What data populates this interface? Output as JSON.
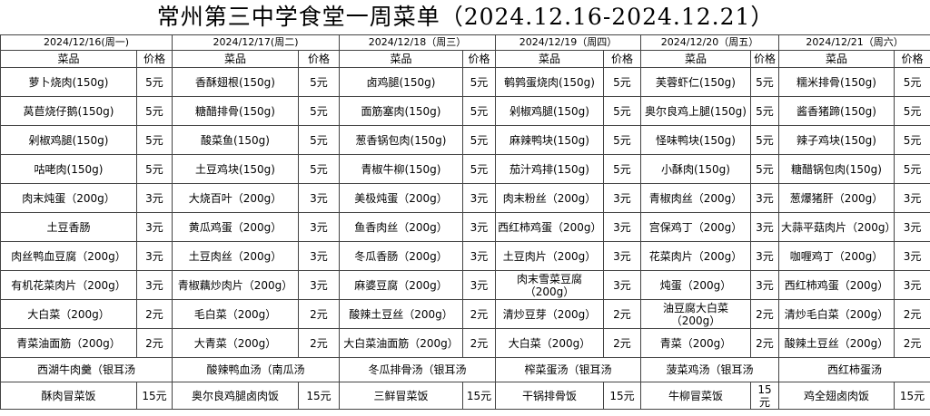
{
  "title": "常州第三中学食堂一周菜单（2024.12.16-2024.12.21）",
  "headers": [
    "菜品",
    "价格"
  ],
  "days": [
    {
      "date": "2024/12/16(周一)",
      "dishes": [
        {
          "name": "萝卜烧肉(150g)",
          "price": "5元"
        },
        {
          "name": "莴苣烧仔鹅(150g)",
          "price": "5元"
        },
        {
          "name": "剁椒鸡腿(150g)",
          "price": "5元"
        },
        {
          "name": "咕咾肉(150g)",
          "price": "5元"
        },
        {
          "name": "肉末炖蛋（200g）",
          "price": "3元"
        },
        {
          "name": "土豆香肠",
          "price": "3元"
        },
        {
          "name": "肉丝鸭血豆腐（200g）",
          "price": "3元"
        },
        {
          "name": "有机花菜肉片（200g）",
          "price": "3元"
        },
        {
          "name": "大白菜（200g）",
          "price": "2元"
        },
        {
          "name": "青菜油面筋（200g）",
          "price": "2元"
        }
      ],
      "soup": "西湖牛肉羹（银耳汤",
      "rice": {
        "name": "酥肉冒菜饭",
        "price": "15元"
      }
    },
    {
      "date": "2024/12/17(周二)",
      "dishes": [
        {
          "name": "香酥翅根(150g)",
          "price": "5元"
        },
        {
          "name": "糖醋排骨(150g)",
          "price": "5元"
        },
        {
          "name": "酸菜鱼(150g)",
          "price": "5元"
        },
        {
          "name": "土豆鸡块(150g)",
          "price": "5元"
        },
        {
          "name": "大烧百叶（200g）",
          "price": "3元"
        },
        {
          "name": "黄瓜鸡蛋（200g）",
          "price": "3元"
        },
        {
          "name": "土豆肉丝（200g）",
          "price": "3元"
        },
        {
          "name": "青椒藕炒肉片（200g）",
          "price": "3元"
        },
        {
          "name": "毛白菜（200g）",
          "price": "2元"
        },
        {
          "name": "大青菜（200g）",
          "price": "2元"
        }
      ],
      "soup": "酸辣鸭血汤（南瓜汤",
      "rice": {
        "name": "奥尔良鸡腿卤肉饭",
        "price": "15元"
      }
    },
    {
      "date": "2024/12/18（周三）",
      "dishes": [
        {
          "name": "卤鸡腿(150g)",
          "price": "5元"
        },
        {
          "name": "面筋塞肉(150g)",
          "price": "5元"
        },
        {
          "name": "葱香锅包肉(150g)",
          "price": "5元"
        },
        {
          "name": "青椒牛柳(150g)",
          "price": "5元"
        },
        {
          "name": "美极炖蛋（200g）",
          "price": "3元"
        },
        {
          "name": "鱼香肉丝（200g）",
          "price": "3元"
        },
        {
          "name": "冬瓜香肠（200g）",
          "price": "3元"
        },
        {
          "name": "麻婆豆腐（200g）",
          "price": "3元"
        },
        {
          "name": "酸辣土豆丝（200g）",
          "price": "2元"
        },
        {
          "name": "大白菜油面筋（200g）",
          "price": "2元"
        }
      ],
      "soup": "冬瓜排骨汤（银耳汤",
      "rice": {
        "name": "三鲜冒菜饭",
        "price": "15元"
      }
    },
    {
      "date": "2024/12/19（周四）",
      "dishes": [
        {
          "name": "鹌鹑蛋烧肉(150g)",
          "price": "5元"
        },
        {
          "name": "剁椒鸡腿(150g)",
          "price": "5元"
        },
        {
          "name": "麻辣鸭块(150g)",
          "price": "5元"
        },
        {
          "name": "茄汁鸡排(150g)",
          "price": "5元"
        },
        {
          "name": "肉末粉丝（200g）",
          "price": "3元"
        },
        {
          "name": "西红柿鸡蛋（200g）",
          "price": "3元"
        },
        {
          "name": "土豆肉片（200g）",
          "price": "3元"
        },
        {
          "name": "肉末雪菜豆腐（200g）",
          "price": "3元"
        },
        {
          "name": "清炒豆芽（200g）",
          "price": "2元"
        },
        {
          "name": "大白菜（200g）",
          "price": "2元"
        }
      ],
      "soup": "榨菜蛋汤（银耳汤",
      "rice": {
        "name": "干锅排骨饭",
        "price": "15元"
      }
    },
    {
      "date": "2024/12/20（周五）",
      "dishes": [
        {
          "name": "芙蓉虾仁(150g)",
          "price": "5元"
        },
        {
          "name": "奥尔良鸡上腿(150g)",
          "price": "5元"
        },
        {
          "name": "怪味鸭块(150g)",
          "price": "5元"
        },
        {
          "name": "小酥肉(150g)",
          "price": "5元"
        },
        {
          "name": "青椒肉丝（200g）",
          "price": "3元"
        },
        {
          "name": "宫保鸡丁（200g）",
          "price": "3元"
        },
        {
          "name": "花菜肉片（200g）",
          "price": "3元"
        },
        {
          "name": "炖蛋（200g）",
          "price": "3元"
        },
        {
          "name": "油豆腐大白菜（200g）",
          "price": "2元"
        },
        {
          "name": "青菜（200g）",
          "price": "2元"
        }
      ],
      "soup": "菠菜鸡汤（银耳汤",
      "rice": {
        "name": "牛柳冒菜饭",
        "price": "15元"
      }
    },
    {
      "date": "2024/12/21（周六）",
      "dishes": [
        {
          "name": "糯米排骨(150g)",
          "price": "5元"
        },
        {
          "name": "酱香猪蹄(150g)",
          "price": "5元"
        },
        {
          "name": "辣子鸡块(150g)",
          "price": "5元"
        },
        {
          "name": "糖醋锅包肉(150g)",
          "price": "5元"
        },
        {
          "name": "葱爆猪肝（200g）",
          "price": "3元"
        },
        {
          "name": "大蒜平菇肉片（200g）",
          "price": "3元"
        },
        {
          "name": "咖喱鸡丁（200g）",
          "price": "3元"
        },
        {
          "name": "西红柿鸡蛋（200g）",
          "price": "3元"
        },
        {
          "name": "清炒毛白菜（200g）",
          "price": "2元"
        },
        {
          "name": "酸辣土豆丝（200g）",
          "price": "2元"
        }
      ],
      "soup": "西红柿蛋汤",
      "rice": {
        "name": "鸡全翅卤肉饭",
        "price": "15元"
      }
    }
  ]
}
